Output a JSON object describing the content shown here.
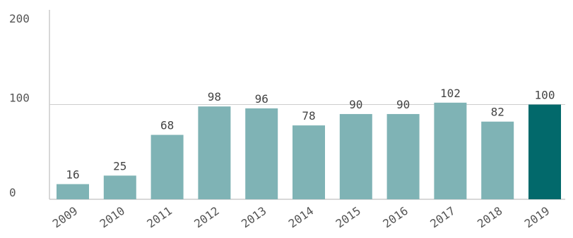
{
  "chart_data": {
    "type": "bar",
    "title": "",
    "xlabel": "",
    "ylabel": "",
    "categories": [
      "2009",
      "2010",
      "2011",
      "2012",
      "2013",
      "2014",
      "2015",
      "2016",
      "2017",
      "2018",
      "2019"
    ],
    "values": [
      16,
      25,
      68,
      98,
      96,
      78,
      90,
      90,
      102,
      82,
      100
    ],
    "data_labels": [
      "16",
      "25",
      "68",
      "98",
      "96",
      "78",
      "90",
      "90",
      "102",
      "82",
      "100"
    ],
    "ylim": [
      0,
      200
    ],
    "yticks": [
      0,
      100,
      200
    ],
    "ytick_labels": [
      "0",
      "100",
      "200"
    ],
    "grid": true,
    "legend": "none",
    "colors": {
      "bar": "#7fb3b5",
      "highlight_bar": "#02696b",
      "highlight_category": "2019"
    }
  }
}
